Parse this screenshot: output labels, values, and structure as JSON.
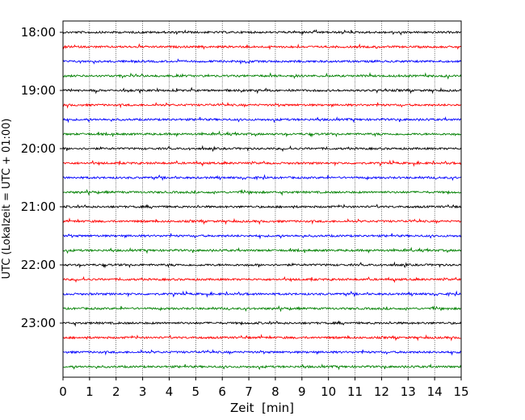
{
  "chart_data": {
    "type": "line",
    "title": "",
    "xlabel": "Zeit  [min]",
    "ylabel": "UTC (Lokalzeit = UTC + 01:00)",
    "xlim": [
      0,
      15
    ],
    "x_ticks": [
      "0",
      "1",
      "2",
      "3",
      "4",
      "5",
      "6",
      "7",
      "8",
      "9",
      "10",
      "11",
      "12",
      "13",
      "14",
      "15"
    ],
    "y_ticks": [
      "18:00",
      "19:00",
      "20:00",
      "21:00",
      "22:00",
      "23:00"
    ],
    "grid": "vertical dotted lines at each minute",
    "trace_interval_min": 15,
    "trace_colors": [
      "#000000",
      "#ff0000",
      "#0000ff",
      "#008000"
    ],
    "traces": [
      {
        "start": "18:00"
      },
      {
        "start": "18:15"
      },
      {
        "start": "18:30"
      },
      {
        "start": "18:45"
      },
      {
        "start": "19:00"
      },
      {
        "start": "19:15"
      },
      {
        "start": "19:30"
      },
      {
        "start": "19:45"
      },
      {
        "start": "20:00"
      },
      {
        "start": "20:15"
      },
      {
        "start": "20:30"
      },
      {
        "start": "20:45"
      },
      {
        "start": "21:00"
      },
      {
        "start": "21:15"
      },
      {
        "start": "21:30"
      },
      {
        "start": "21:45"
      },
      {
        "start": "22:00"
      },
      {
        "start": "22:15"
      },
      {
        "start": "22:30"
      },
      {
        "start": "22:45"
      },
      {
        "start": "23:00"
      },
      {
        "start": "23:15"
      },
      {
        "start": "23:30"
      },
      {
        "start": "23:45"
      }
    ]
  }
}
